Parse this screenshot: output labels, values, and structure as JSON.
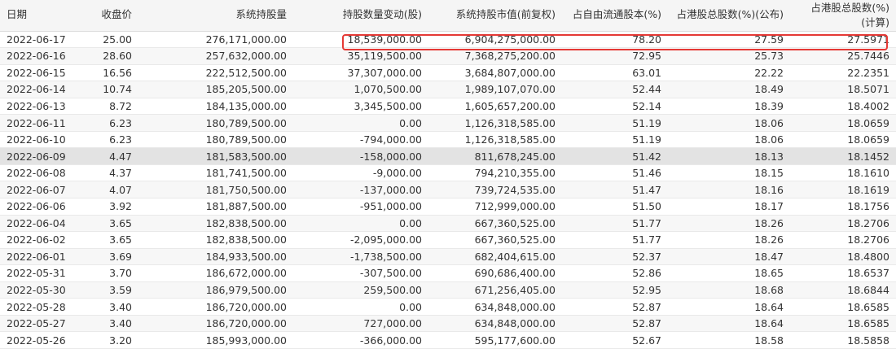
{
  "columns": [
    {
      "label": "日期"
    },
    {
      "label": "收盘价"
    },
    {
      "label": "系统持股量"
    },
    {
      "label": "持股数量变动(股)"
    },
    {
      "label": "系统持股市值(前复权)"
    },
    {
      "label": "占自由流通股本(%)"
    },
    {
      "label": "占港股总股数(%)(公布)"
    },
    {
      "label": "占港股总股数(%)",
      "sub": "(计算)"
    }
  ],
  "rows": [
    [
      "2022-06-17",
      "25.00",
      "276,171,000.00",
      "18,539,000.00",
      "6,904,275,000.00",
      "78.20",
      "27.59",
      "27.5971"
    ],
    [
      "2022-06-16",
      "28.60",
      "257,632,000.00",
      "35,119,500.00",
      "7,368,275,200.00",
      "72.95",
      "25.73",
      "25.7446"
    ],
    [
      "2022-06-15",
      "16.56",
      "222,512,500.00",
      "37,307,000.00",
      "3,684,807,000.00",
      "63.01",
      "22.22",
      "22.2351"
    ],
    [
      "2022-06-14",
      "10.74",
      "185,205,500.00",
      "1,070,500.00",
      "1,989,107,070.00",
      "52.44",
      "18.49",
      "18.5071"
    ],
    [
      "2022-06-13",
      "8.72",
      "184,135,000.00",
      "3,345,500.00",
      "1,605,657,200.00",
      "52.14",
      "18.39",
      "18.4002"
    ],
    [
      "2022-06-11",
      "6.23",
      "180,789,500.00",
      "0.00",
      "1,126,318,585.00",
      "51.19",
      "18.06",
      "18.0659"
    ],
    [
      "2022-06-10",
      "6.23",
      "180,789,500.00",
      "-794,000.00",
      "1,126,318,585.00",
      "51.19",
      "18.06",
      "18.0659"
    ],
    [
      "2022-06-09",
      "4.47",
      "181,583,500.00",
      "-158,000.00",
      "811,678,245.00",
      "51.42",
      "18.13",
      "18.1452"
    ],
    [
      "2022-06-08",
      "4.37",
      "181,741,500.00",
      "-9,000.00",
      "794,210,355.00",
      "51.46",
      "18.15",
      "18.1610"
    ],
    [
      "2022-06-07",
      "4.07",
      "181,750,500.00",
      "-137,000.00",
      "739,724,535.00",
      "51.47",
      "18.16",
      "18.1619"
    ],
    [
      "2022-06-06",
      "3.92",
      "181,887,500.00",
      "-951,000.00",
      "712,999,000.00",
      "51.50",
      "18.17",
      "18.1756"
    ],
    [
      "2022-06-04",
      "3.65",
      "182,838,500.00",
      "0.00",
      "667,360,525.00",
      "51.77",
      "18.26",
      "18.2706"
    ],
    [
      "2022-06-02",
      "3.65",
      "182,838,500.00",
      "-2,095,000.00",
      "667,360,525.00",
      "51.77",
      "18.26",
      "18.2706"
    ],
    [
      "2022-06-01",
      "3.69",
      "184,933,500.00",
      "-1,738,500.00",
      "682,404,615.00",
      "52.37",
      "18.47",
      "18.4800"
    ],
    [
      "2022-05-31",
      "3.70",
      "186,672,000.00",
      "-307,500.00",
      "690,686,400.00",
      "52.86",
      "18.65",
      "18.6537"
    ],
    [
      "2022-05-30",
      "3.59",
      "186,979,500.00",
      "259,500.00",
      "671,256,405.00",
      "52.95",
      "18.68",
      "18.6844"
    ],
    [
      "2022-05-28",
      "3.40",
      "186,720,000.00",
      "0.00",
      "634,848,000.00",
      "52.87",
      "18.64",
      "18.6585"
    ],
    [
      "2022-05-27",
      "3.40",
      "186,720,000.00",
      "727,000.00",
      "634,848,000.00",
      "52.87",
      "18.64",
      "18.6585"
    ],
    [
      "2022-05-26",
      "3.20",
      "185,993,000.00",
      "-366,000.00",
      "595,177,600.00",
      "52.67",
      "18.58",
      "18.5858"
    ]
  ],
  "hover_row": 7,
  "highlight_row": 0,
  "colors": {
    "highlight_border": "#e53935",
    "hover_bg": "#e3e3e3",
    "header_bg": "#f5f5f5"
  }
}
